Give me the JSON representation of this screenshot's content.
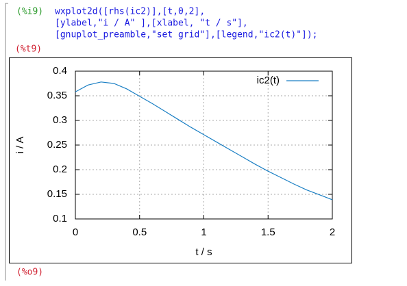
{
  "input": {
    "label": "(%i9)",
    "lines": [
      "wxplot2d([rhs(ic2)],[t,0,2],",
      "[ylabel,\"i / A\" ],[xlabel, \"t / s\"],",
      "[gnuplot_preamble,\"set grid\"],[legend,\"ic2(t)\"]);"
    ]
  },
  "plot_label": "(%t9)",
  "output_label": "(%o9)",
  "chart_data": {
    "type": "line",
    "x": [
      0,
      0.1,
      0.2,
      0.3,
      0.4,
      0.5,
      0.6,
      0.7,
      0.8,
      0.9,
      1.0,
      1.1,
      1.2,
      1.3,
      1.4,
      1.5,
      1.6,
      1.7,
      1.8,
      1.9,
      2.0
    ],
    "series": [
      {
        "name": "ic2(t)",
        "color": "#1a7fc4",
        "values": [
          0.358,
          0.372,
          0.378,
          0.375,
          0.364,
          0.349,
          0.334,
          0.318,
          0.302,
          0.286,
          0.271,
          0.256,
          0.241,
          0.226,
          0.211,
          0.197,
          0.184,
          0.171,
          0.159,
          0.149,
          0.139
        ]
      }
    ],
    "xlabel": "t / s",
    "ylabel": "i / A",
    "xlim": [
      0,
      2
    ],
    "ylim": [
      0.1,
      0.4
    ],
    "xticks": [
      0,
      0.5,
      1,
      1.5,
      2
    ],
    "yticks": [
      0.1,
      0.15,
      0.2,
      0.25,
      0.3,
      0.35,
      0.4
    ],
    "grid": true,
    "legend": "upper right"
  }
}
